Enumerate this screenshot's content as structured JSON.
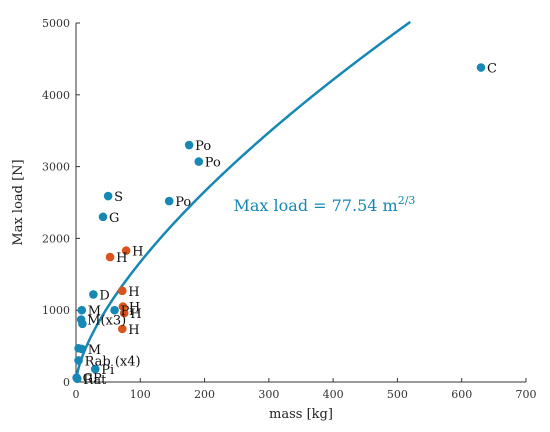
{
  "chart_data": {
    "type": "scatter",
    "xlabel": "mass [kg]",
    "ylabel": "Max load [N]",
    "xlim": [
      0,
      700
    ],
    "ylim": [
      0,
      5000
    ],
    "x_ticks": [
      "0",
      "100",
      "200",
      "300",
      "400",
      "500",
      "600",
      "700"
    ],
    "y_ticks": [
      "0",
      "1000",
      "2000",
      "3000",
      "4000",
      "5000"
    ],
    "grid": false,
    "colors": {
      "blue": "#1787b3",
      "orange": "#d9541c",
      "curve": "#1787b3",
      "axis": "#333333"
    },
    "series": [
      {
        "color_key": "blue",
        "points": [
          {
            "x": 630,
            "y": 4380,
            "label": "C"
          },
          {
            "x": 176,
            "y": 3300,
            "label": "Po"
          },
          {
            "x": 191,
            "y": 3070,
            "label": "Po"
          },
          {
            "x": 145,
            "y": 2520,
            "label": "Po"
          },
          {
            "x": 50,
            "y": 2590,
            "label": "S"
          },
          {
            "x": 42,
            "y": 2300,
            "label": "G"
          },
          {
            "x": 27,
            "y": 1220,
            "label": "D"
          },
          {
            "x": 9,
            "y": 1000,
            "label": "M"
          },
          {
            "x": 8,
            "y": 870,
            "label": "M(x3)"
          },
          {
            "x": 10,
            "y": 810,
            "label": ""
          },
          {
            "x": 60,
            "y": 1000,
            "label": "Pi"
          },
          {
            "x": 4,
            "y": 470,
            "label": ""
          },
          {
            "x": 9,
            "y": 460,
            "label": "M"
          },
          {
            "x": 4,
            "y": 300,
            "label": "Rab (x4)"
          },
          {
            "x": 30,
            "y": 180,
            "label": "Pi"
          },
          {
            "x": 1,
            "y": 60,
            "label": "GP"
          },
          {
            "x": 2,
            "y": 45,
            "label": "Rat"
          }
        ]
      },
      {
        "color_key": "orange",
        "points": [
          {
            "x": 78,
            "y": 1830,
            "label": "H"
          },
          {
            "x": 53,
            "y": 1740,
            "label": "H"
          },
          {
            "x": 72,
            "y": 1270,
            "label": "H"
          },
          {
            "x": 73,
            "y": 1050,
            "label": "H"
          },
          {
            "x": 75,
            "y": 960,
            "label": "H"
          },
          {
            "x": 72,
            "y": 740,
            "label": "H"
          }
        ]
      }
    ],
    "fit": {
      "coefficient": 77.54,
      "exponent": 0.6667,
      "x_end": 520
    },
    "annotation": {
      "prefix": "Max load = 77.54 m",
      "superscript": "2/3",
      "x": 245,
      "y": 2380
    }
  }
}
